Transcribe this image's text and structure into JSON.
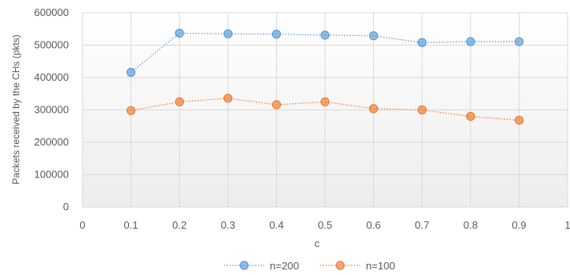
{
  "chart_data": {
    "type": "line",
    "title": "",
    "xlabel": "c",
    "ylabel": "Packets received by the CHs (pkts)",
    "xlim": [
      0,
      1
    ],
    "ylim": [
      0,
      600000
    ],
    "x_ticks": [
      "0",
      "0.1",
      "0.2",
      "0.3",
      "0.4",
      "0.5",
      "0.6",
      "0.7",
      "0.8",
      "0.9",
      "1"
    ],
    "y_ticks": [
      "0",
      "100000",
      "200000",
      "300000",
      "400000",
      "500000",
      "600000"
    ],
    "grid": true,
    "legend_position": "bottom",
    "x": [
      0.1,
      0.2,
      0.3,
      0.4,
      0.5,
      0.6,
      0.7,
      0.8,
      0.9
    ],
    "series": [
      {
        "name": "n=200",
        "color": "#5b9bd5",
        "values": [
          416000,
          537000,
          535000,
          534000,
          531000,
          529000,
          508000,
          511000,
          511000
        ]
      },
      {
        "name": "n=100",
        "color": "#ed7d31",
        "values": [
          298000,
          325000,
          336000,
          316000,
          325000,
          304000,
          300000,
          280000,
          268000
        ]
      }
    ]
  }
}
